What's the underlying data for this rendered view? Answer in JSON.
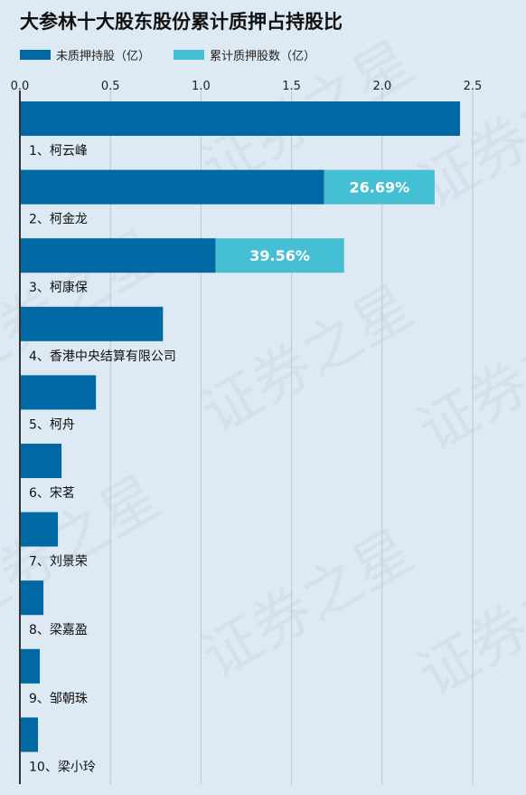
{
  "title": "大参林十大股东股份累计质押占持股比",
  "colors": {
    "unpledged": "#0068a3",
    "pledged": "#45bfd4",
    "axis": "#333333",
    "grid": "#b9c9d6",
    "background": "#dde9f3"
  },
  "chart_data": {
    "type": "bar",
    "orientation": "horizontal",
    "stacked": true,
    "title": "大参林十大股东股份累计质押占持股比",
    "xlabel": "",
    "ylabel": "",
    "xlim": [
      0,
      2.5
    ],
    "xticks": [
      "0.0",
      "0.5",
      "1.0",
      "1.5",
      "2.0",
      "2.5"
    ],
    "xtick_values": [
      0,
      0.5,
      1.0,
      1.5,
      2.0,
      2.5
    ],
    "grid": true,
    "legend_position": "top-left",
    "categories": [
      "1、柯云峰",
      "2、柯金龙",
      "3、柯康保",
      "4、香港中央结算有限公司",
      "5、柯舟",
      "6、宋茗",
      "7、刘景荣",
      "8、梁嘉盈",
      "9、邹朝珠",
      "10、梁小玲"
    ],
    "series": [
      {
        "name": "未质押持股（亿）",
        "values": [
          2.43,
          1.68,
          1.08,
          0.79,
          0.42,
          0.23,
          0.21,
          0.13,
          0.11,
          0.1
        ]
      },
      {
        "name": "累计质押股数（亿）",
        "values": [
          0,
          0.61,
          0.71,
          0,
          0,
          0,
          0,
          0,
          0,
          0
        ]
      }
    ],
    "annotations": [
      "",
      "26.69%",
      "39.56%",
      "",
      "",
      "",
      "",
      "",
      "",
      ""
    ]
  },
  "watermark": "证券之星"
}
